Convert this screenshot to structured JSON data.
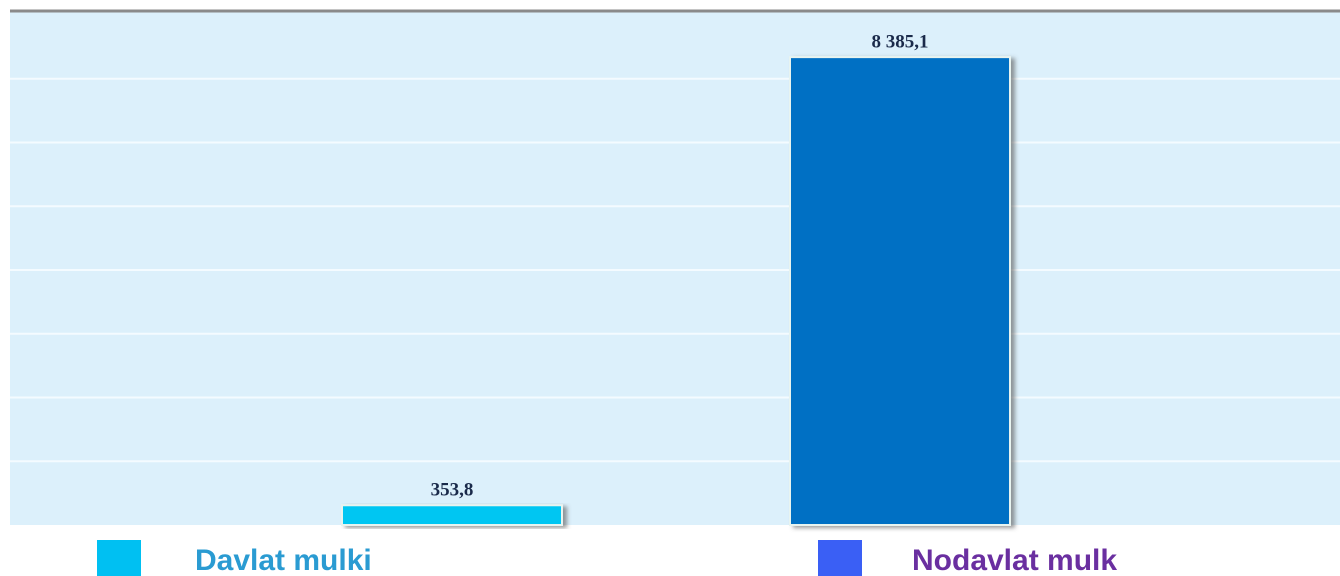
{
  "chart_data": {
    "type": "bar",
    "categories": [
      "Davlat mulki",
      "Nodavlat mulk"
    ],
    "values": [
      353.8,
      8385.1
    ],
    "value_labels": [
      "353,8",
      "8 385,1"
    ],
    "colors": [
      "#00c6f2",
      "#0070c4"
    ],
    "legend": {
      "marker_colors": [
        "#00c0f2",
        "#3a5ff5"
      ],
      "text_colors": [
        "#2a9bd2",
        "#6a2fa0"
      ]
    },
    "ylim": [
      0,
      9140
    ],
    "grid": true
  }
}
